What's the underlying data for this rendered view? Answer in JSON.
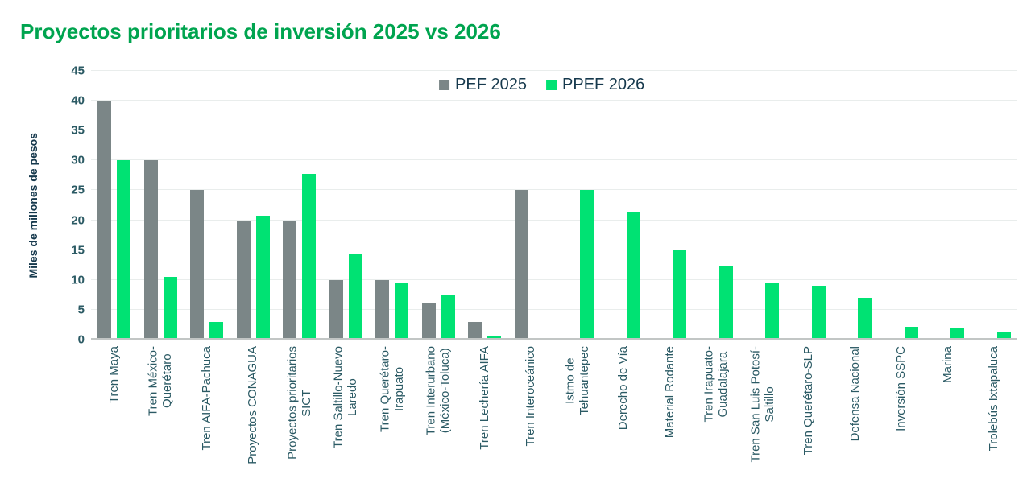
{
  "title": "Proyectos prioritarios de inversión 2025 vs 2026",
  "colors": {
    "title_green": "#00a44f",
    "bar_gray": "#7b8687",
    "bar_green": "#00e273",
    "text_dark": "#16394d",
    "tick_text": "#2b5a64",
    "gridline": "#e9edec",
    "axis_line": "#c2c6c5",
    "background": "#ffffff"
  },
  "chart_data": {
    "type": "bar",
    "title": "Proyectos prioritarios de inversión 2025 vs 2026",
    "xlabel": "",
    "ylabel": "Miles de millones de pesos",
    "ylim": [
      0,
      45
    ],
    "ytick_step": 5,
    "yticks": [
      0,
      5,
      10,
      15,
      20,
      25,
      30,
      35,
      40,
      45
    ],
    "grid": true,
    "legend_position": "top-center",
    "categories": [
      "Tren Maya",
      "Tren México-\nQuerétaro",
      "Tren AIFA-Pachuca",
      "Proyectos CONAGUA",
      "Proyectos prioritarios\nSICT",
      "Tren Saltillo-Nuevo\nLaredo",
      "Tren Querétaro-\nIrapuato",
      "Tren Interurbano\n(México-Toluca)",
      "Tren Lechería AIFA",
      "Tren Interoceánico",
      "Istmo de\nTehuantepec",
      "Derecho de Vía",
      "Material Rodante",
      "Tren Irapuato-\nGuadalajara",
      "Tren San Luis Potosí-\nSaltillo",
      "Tren Querétaro-SLP",
      "Defensa Nacional",
      "Inversión SSPC",
      "Marina",
      "Trolebús Ixtapaluca"
    ],
    "series": [
      {
        "name": "PEF 2025",
        "color": "#7b8687",
        "values": [
          40,
          30,
          25,
          20,
          20,
          10,
          10,
          6,
          3,
          25,
          0,
          0,
          0,
          0,
          0,
          0,
          0,
          0,
          0,
          0
        ]
      },
      {
        "name": "PPEF 2026",
        "color": "#00e273",
        "values": [
          30,
          10.5,
          3,
          20.8,
          27.7,
          14.4,
          9.4,
          7.4,
          0.7,
          0,
          25,
          21.4,
          14.9,
          12.4,
          9.4,
          9,
          7,
          2.2,
          2,
          1.3
        ]
      }
    ]
  }
}
